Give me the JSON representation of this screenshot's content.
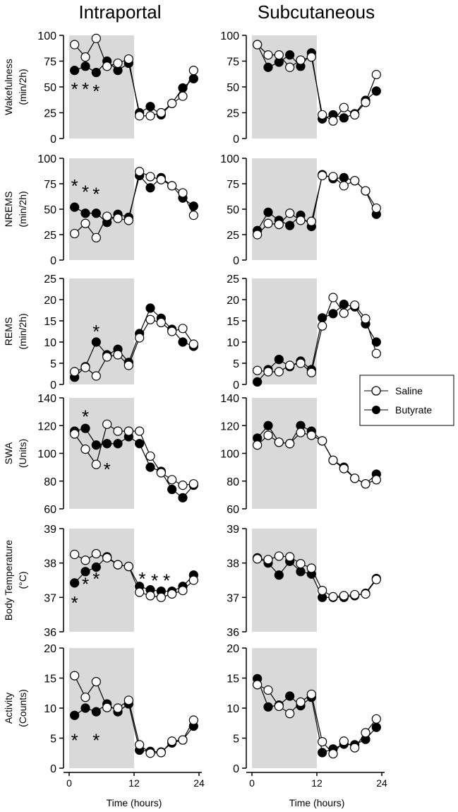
{
  "column_titles": [
    "Intraportal",
    "Subcutaneous"
  ],
  "legend": [
    "Saline",
    "Butyrate"
  ],
  "xlabel": "Time (hours)",
  "xticks": [
    0,
    12,
    24
  ],
  "dark_phase": [
    0,
    12
  ],
  "colors": {
    "shade": "#d9d9d9",
    "saline": "#ffffff",
    "butyrate": "#000000"
  },
  "chart_data": [
    {
      "type": "line",
      "row": "Wakefulness",
      "ylabel": [
        "Wakefulness",
        "(min/2h)"
      ],
      "ylim": [
        0,
        100
      ],
      "yticks": [
        0,
        25,
        50,
        75,
        100
      ],
      "x": [
        1,
        3,
        5,
        7,
        9,
        11,
        13,
        15,
        17,
        19,
        21,
        23
      ],
      "panels": [
        {
          "column": "Intraportal",
          "series": [
            {
              "name": "Saline",
              "values": [
                91,
                79,
                97,
                70,
                73,
                77,
                22,
                22,
                25,
                34,
                41,
                66
              ]
            },
            {
              "name": "Butyrate",
              "values": [
                66,
                70,
                64,
                75,
                66,
                73,
                25,
                31,
                23,
                34,
                49,
                58
              ]
            }
          ],
          "annotations": [
            {
              "text": "*",
              "x": 1,
              "y": 50
            },
            {
              "text": "*",
              "x": 3,
              "y": 50
            },
            {
              "text": "*",
              "x": 5,
              "y": 48
            }
          ]
        },
        {
          "column": "Subcutaneous",
          "series": [
            {
              "name": "Saline",
              "values": [
                91,
                81,
                81,
                69,
                76,
                79,
                23,
                17,
                30,
                23,
                35,
                62
              ]
            },
            {
              "name": "Butyrate",
              "values": [
                91,
                69,
                74,
                81,
                70,
                83,
                19,
                23,
                20,
                24,
                37,
                46
              ]
            }
          ],
          "annotations": []
        }
      ]
    },
    {
      "type": "line",
      "row": "NREMS",
      "ylabel": [
        "NREMS",
        "(min/2h)"
      ],
      "ylim": [
        0,
        100
      ],
      "yticks": [
        0,
        25,
        50,
        75,
        100
      ],
      "x": [
        1,
        3,
        5,
        7,
        9,
        11,
        13,
        15,
        17,
        19,
        21,
        23
      ],
      "panels": [
        {
          "column": "Intraportal",
          "series": [
            {
              "name": "Saline",
              "values": [
                26,
                36,
                22,
                43,
                41,
                39,
                87,
                82,
                79,
                73,
                66,
                44
              ]
            },
            {
              "name": "Butyrate",
              "values": [
                52,
                46,
                46,
                37,
                45,
                42,
                83,
                71,
                81,
                73,
                61,
                53
              ]
            }
          ],
          "annotations": [
            {
              "text": "*",
              "x": 1,
              "y": 75
            },
            {
              "text": "*",
              "x": 3,
              "y": 69
            },
            {
              "text": "*",
              "x": 5,
              "y": 67
            }
          ]
        },
        {
          "column": "Subcutaneous",
          "series": [
            {
              "name": "Saline",
              "values": [
                25,
                36,
                35,
                46,
                39,
                38,
                83,
                82,
                73,
                78,
                68,
                51
              ]
            },
            {
              "name": "Butyrate",
              "values": [
                29,
                47,
                39,
                34,
                44,
                33,
                84,
                80,
                81,
                78,
                68,
                45
              ]
            }
          ],
          "annotations": []
        }
      ]
    },
    {
      "type": "line",
      "row": "REMS",
      "ylabel": [
        "REMS",
        "(min/2h)"
      ],
      "ylim": [
        0,
        25
      ],
      "yticks": [
        0,
        5,
        10,
        15,
        20,
        25
      ],
      "x": [
        1,
        3,
        5,
        7,
        9,
        11,
        13,
        15,
        17,
        19,
        21,
        23
      ],
      "panels": [
        {
          "column": "Intraportal",
          "series": [
            {
              "name": "Saline",
              "values": [
                3,
                4,
                2,
                6.5,
                7,
                4.5,
                11,
                15.3,
                14.6,
                12.5,
                13.2,
                9.5
              ]
            },
            {
              "name": "Butyrate",
              "values": [
                1.7,
                4.2,
                10,
                7,
                8.3,
                5.2,
                12,
                18,
                15.6,
                13,
                10,
                9
              ]
            }
          ],
          "annotations": [
            {
              "text": "*",
              "x": 5,
              "y": 13
            }
          ]
        },
        {
          "column": "Subcutaneous",
          "series": [
            {
              "name": "Saline",
              "values": [
                3.3,
                3,
                3,
                4.5,
                5,
                2.8,
                13.8,
                20.5,
                16.8,
                18.7,
                15.5,
                7.3
              ]
            },
            {
              "name": "Butyrate",
              "values": [
                0.6,
                3.5,
                5.9,
                4.2,
                5.5,
                3.5,
                15.7,
                16.7,
                18.9,
                18.3,
                14.3,
                10
              ]
            }
          ],
          "annotations": []
        }
      ]
    },
    {
      "type": "line",
      "row": "SWA",
      "ylabel": [
        "SWA",
        "(Units)"
      ],
      "ylim": [
        60,
        140
      ],
      "yticks": [
        60,
        80,
        100,
        120,
        140
      ],
      "x": [
        1,
        3,
        5,
        7,
        9,
        11,
        13,
        15,
        17,
        19,
        21,
        23
      ],
      "panels": [
        {
          "column": "Intraportal",
          "series": [
            {
              "name": "Saline",
              "values": [
                114,
                103,
                92,
                121,
                116,
                116,
                116,
                98,
                86,
                81,
                77,
                78
              ]
            },
            {
              "name": "Butyrate",
              "values": [
                116,
                118,
                106,
                107,
                107,
                112,
                107,
                90,
                87,
                74,
                68,
                77
              ]
            }
          ],
          "annotations": [
            {
              "text": "*",
              "x": 3,
              "y": 128
            },
            {
              "text": "*",
              "x": 7,
              "y": 90
            }
          ]
        },
        {
          "column": "Subcutaneous",
          "series": [
            {
              "name": "Saline",
              "values": [
                106,
                113,
                108,
                107,
                115,
                113,
                109,
                95,
                89,
                82,
                78,
                81
              ]
            },
            {
              "name": "Butyrate",
              "values": [
                111,
                120,
                108,
                107,
                120,
                116,
                109,
                95,
                90,
                82,
                78,
                85
              ]
            }
          ],
          "annotations": []
        }
      ]
    },
    {
      "type": "line",
      "row": "Body Temperature",
      "ylabel": [
        "Body Temperature",
        "(°C)"
      ],
      "ylim": [
        36,
        39
      ],
      "yticks": [
        36,
        37,
        38,
        39
      ],
      "x": [
        1,
        3,
        5,
        7,
        9,
        11,
        13,
        15,
        17,
        19,
        21,
        23
      ],
      "panels": [
        {
          "column": "Intraportal",
          "series": [
            {
              "name": "Saline",
              "values": [
                38.25,
                38.08,
                38.27,
                38.15,
                37.95,
                37.9,
                37.15,
                37.05,
                37.0,
                37.1,
                37.2,
                37.5
              ]
            },
            {
              "name": "Butyrate",
              "values": [
                37.42,
                37.75,
                37.88,
                38.18,
                37.95,
                37.9,
                37.32,
                37.22,
                37.18,
                37.18,
                37.32,
                37.65
              ]
            }
          ],
          "annotations": [
            {
              "text": "*",
              "x": 1,
              "y": 36.9
            },
            {
              "text": "*",
              "x": 3,
              "y": 37.45
            },
            {
              "text": "*",
              "x": 5,
              "y": 37.6
            },
            {
              "text": "*",
              "x": 13.5,
              "y": 37.6
            },
            {
              "text": "*",
              "x": 15.8,
              "y": 37.55
            },
            {
              "text": "*",
              "x": 18,
              "y": 37.55
            }
          ]
        },
        {
          "column": "Subcutaneous",
          "series": [
            {
              "name": "Saline",
              "values": [
                38.12,
                38.1,
                38.2,
                38.18,
                37.98,
                37.85,
                37.2,
                37.02,
                37.05,
                37.08,
                37.1,
                37.52
              ]
            },
            {
              "name": "Butyrate",
              "values": [
                38.15,
                38.0,
                37.65,
                38.05,
                37.75,
                37.68,
                37.0,
                37.0,
                37.0,
                37.05,
                37.12,
                37.55
              ]
            }
          ],
          "annotations": []
        }
      ]
    },
    {
      "type": "line",
      "row": "Activity",
      "ylabel": [
        "Activity",
        "(Counts)"
      ],
      "ylim": [
        0,
        20
      ],
      "yticks": [
        0,
        5,
        10,
        15,
        20
      ],
      "x": [
        1,
        3,
        5,
        7,
        9,
        11,
        13,
        15,
        17,
        19,
        21,
        23
      ],
      "panels": [
        {
          "column": "Intraportal",
          "series": [
            {
              "name": "Saline",
              "values": [
                15.4,
                11.8,
                14.4,
                10.1,
                10,
                11.3,
                3.9,
                2.5,
                2.6,
                4.5,
                4.7,
                8
              ]
            },
            {
              "name": "Butyrate",
              "values": [
                8.8,
                10,
                9.4,
                10.7,
                9.4,
                10.7,
                3,
                2.8,
                2.7,
                4.2,
                4.7,
                7
              ]
            }
          ],
          "annotations": [
            {
              "text": "*",
              "x": 1,
              "y": 5
            },
            {
              "text": "*",
              "x": 5,
              "y": 5
            }
          ]
        },
        {
          "column": "Subcutaneous",
          "series": [
            {
              "name": "Saline",
              "values": [
                13.9,
                13,
                10.3,
                9.1,
                11,
                12.3,
                4.4,
                2.4,
                4.5,
                3.4,
                5.9,
                8.2
              ]
            },
            {
              "name": "Butyrate",
              "values": [
                14.9,
                10.2,
                10.5,
                12,
                10.4,
                11.8,
                2.6,
                3.2,
                4,
                3.9,
                4.8,
                6.8
              ]
            }
          ],
          "annotations": []
        }
      ]
    }
  ]
}
